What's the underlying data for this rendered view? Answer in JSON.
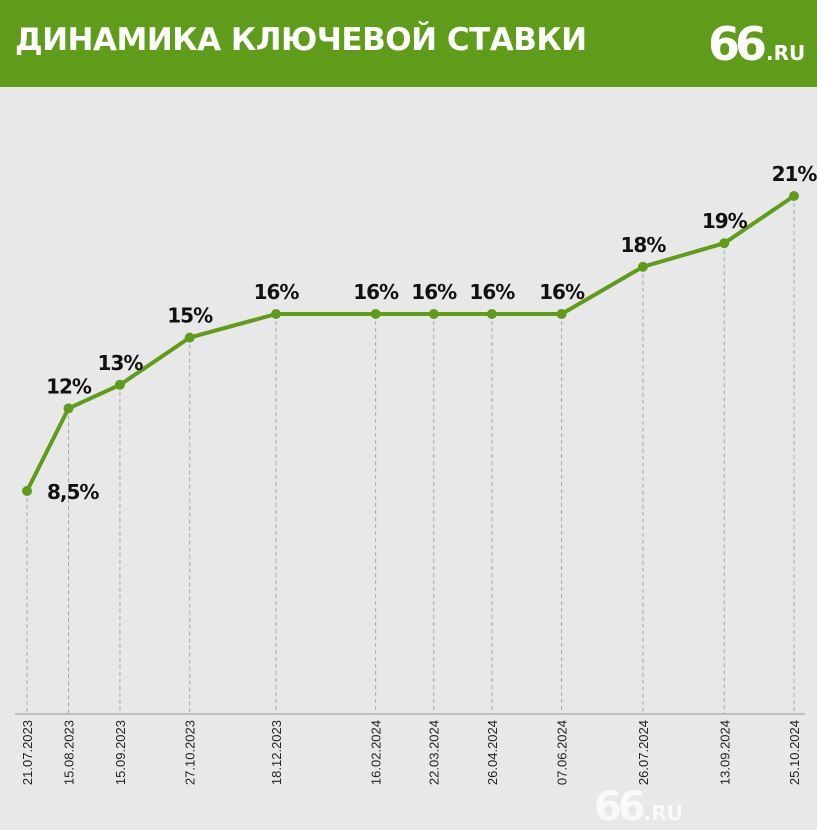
{
  "header": {
    "title": "ДИНАМИКА КЛЮЧЕВОЙ СТАВКИ",
    "logo_number": "66",
    "logo_suffix": ".RU",
    "background_color": "#5e9c1a"
  },
  "watermark": {
    "number": "66",
    "suffix": ".RU"
  },
  "chart_data": {
    "type": "line",
    "title": "ДИНАМИКА КЛЮЧЕВОЙ СТАВКИ",
    "xlabel": "",
    "ylabel": "",
    "line_color": "#5e9c1a",
    "grid": "vertical dashed guide lines at each date",
    "legend": "none",
    "x": [
      "21.07.2023",
      "15.08.2023",
      "15.09.2023",
      "27.10.2023",
      "18.12.2023",
      "16.02.2024",
      "22.03.2024",
      "26.04.2024",
      "07.06.2024",
      "26.07.2024",
      "13.09.2024",
      "25.10.2024"
    ],
    "y": [
      8.5,
      12,
      13,
      15,
      16,
      16,
      16,
      16,
      16,
      18,
      19,
      21
    ],
    "data_labels": [
      "8,5%",
      "12%",
      "13%",
      "15%",
      "16%",
      "16%",
      "16%",
      "16%",
      "16%",
      "18%",
      "19%",
      "21%"
    ]
  }
}
